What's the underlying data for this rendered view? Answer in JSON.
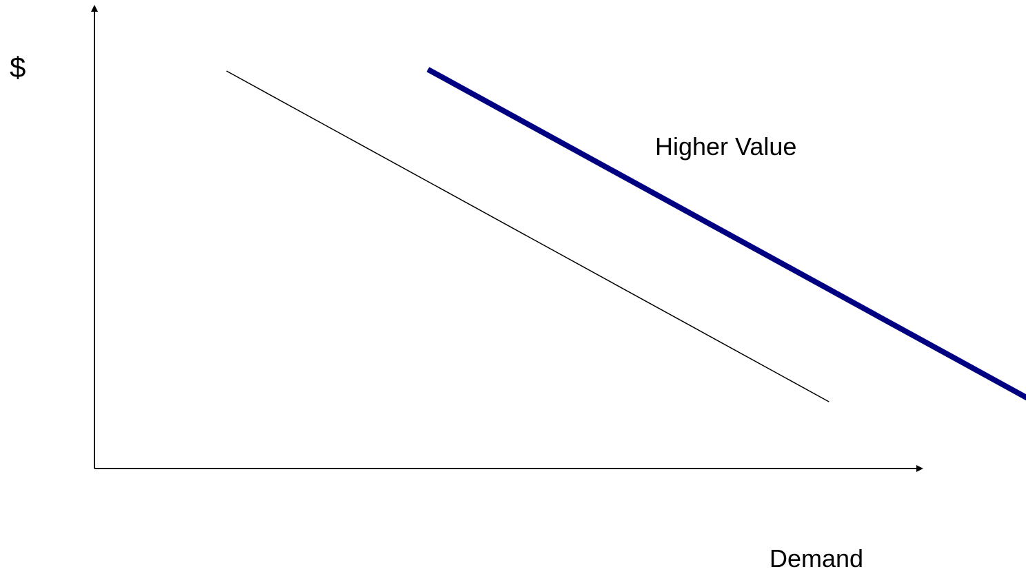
{
  "chart_data": {
    "type": "line",
    "title": "",
    "xlabel": "Demand",
    "ylabel": "$",
    "grid": false,
    "legend": "none",
    "xlim": [
      0,
      100
    ],
    "ylim": [
      0,
      100
    ],
    "series": [
      {
        "color": "#000000",
        "x": [
          16,
          89
        ],
        "y": [
          100,
          16.8
        ]
      },
      {
        "name": "Higher Value",
        "color": "#000080",
        "x": [
          40.4,
          113.5
        ],
        "y": [
          100.4,
          17.2
        ]
      }
    ]
  }
}
